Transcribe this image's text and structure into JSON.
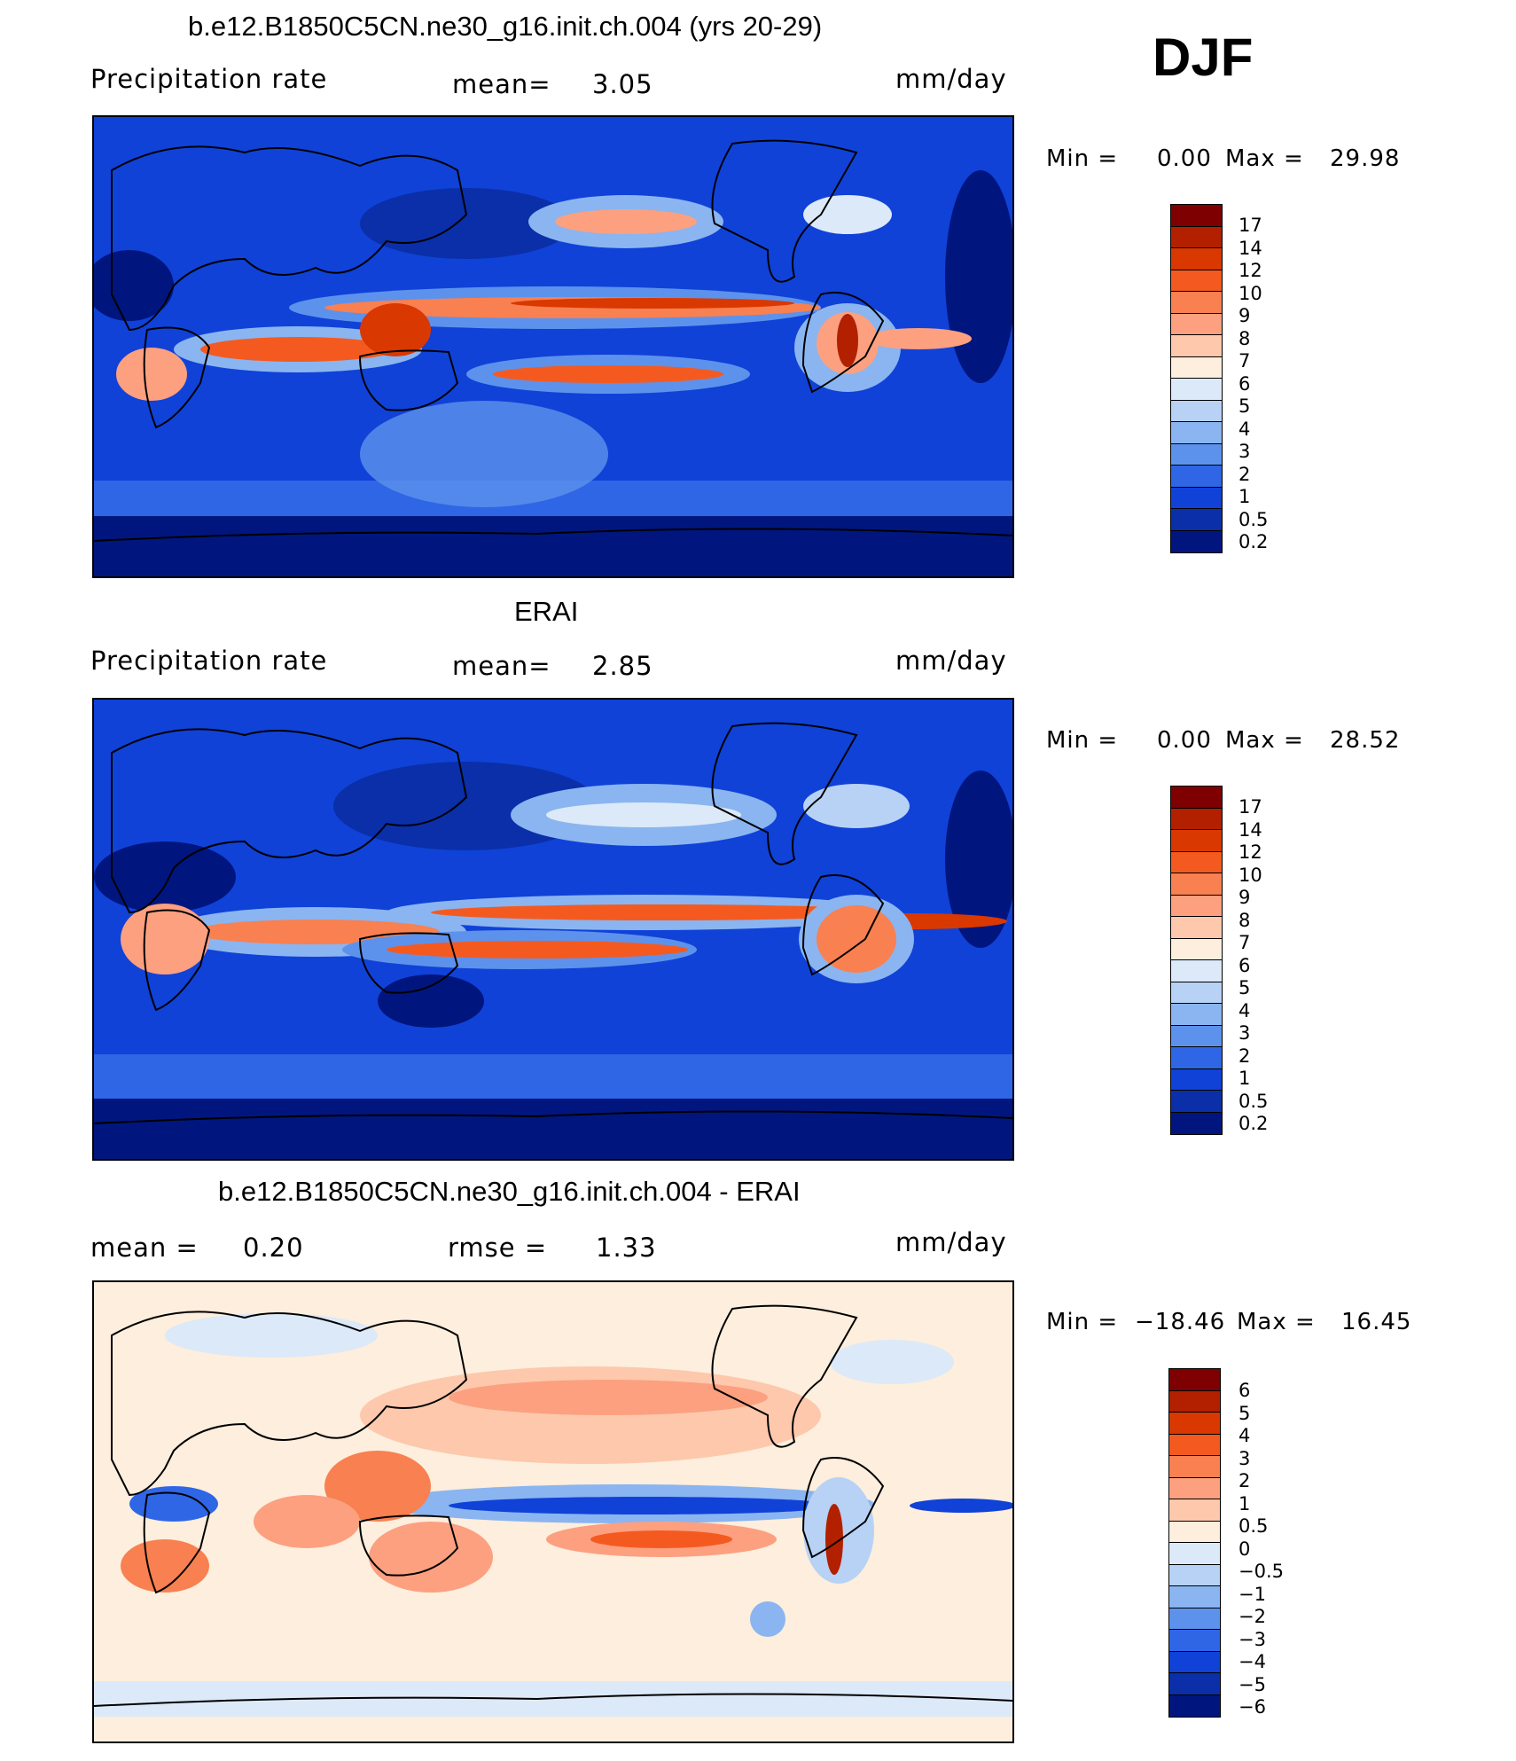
{
  "season": "DJF",
  "panel1": {
    "title": "b.e12.B1850C5CN.ne30_g16.init.ch.004 (yrs 20-29)",
    "variable": "Precipitation  rate",
    "mean_label": "mean=",
    "mean_value": "3.05",
    "units": "mm/day",
    "min_label": "Min  =",
    "min_value": "0.00",
    "max_label": "Max  =",
    "max_value": "29.98"
  },
  "panel2": {
    "title": "ERAI",
    "variable": "Precipitation  rate",
    "mean_label": "mean=",
    "mean_value": "2.85",
    "units": "mm/day",
    "min_label": "Min  =",
    "min_value": "0.00",
    "max_label": "Max  =",
    "max_value": "28.52"
  },
  "panel3": {
    "title": "b.e12.B1850C5CN.ne30_g16.init.ch.004 - ERAI",
    "mean_label": "mean  =",
    "mean_value": "0.20",
    "rmse_label": "rmse  =",
    "rmse_value": "1.33",
    "units": "mm/day",
    "min_label": "Min  =",
    "min_value": "−18.46",
    "max_label": "Max  =",
    "max_value": "16.45"
  },
  "colorbar_abs": {
    "labels": [
      "17",
      "14",
      "12",
      "10",
      "9",
      "8",
      "7",
      "6",
      "5",
      "4",
      "3",
      "2",
      "1",
      "0.5",
      "0.2"
    ],
    "colors": [
      "#7f0000",
      "#b22000",
      "#d93800",
      "#f45a20",
      "#f98050",
      "#fca080",
      "#fdc8ac",
      "#fdeedd",
      "#dce9f8",
      "#b7d2f5",
      "#8ab5f0",
      "#5d92ec",
      "#2f66e6",
      "#1042d8",
      "#0a2fa8",
      "#00167e"
    ]
  },
  "colorbar_diff": {
    "labels": [
      "6",
      "5",
      "4",
      "3",
      "2",
      "1",
      "0.5",
      "0",
      "−0.5",
      "−1",
      "−2",
      "−3",
      "−4",
      "−5",
      "−6"
    ],
    "colors": [
      "#7f0000",
      "#b22000",
      "#d93800",
      "#f45a20",
      "#f98050",
      "#fca080",
      "#fdc8ac",
      "#fdeedd",
      "#dce9f8",
      "#b7d2f5",
      "#8ab5f0",
      "#5d92ec",
      "#2f66e6",
      "#1042d8",
      "#0a2fa8",
      "#00167e"
    ]
  }
}
